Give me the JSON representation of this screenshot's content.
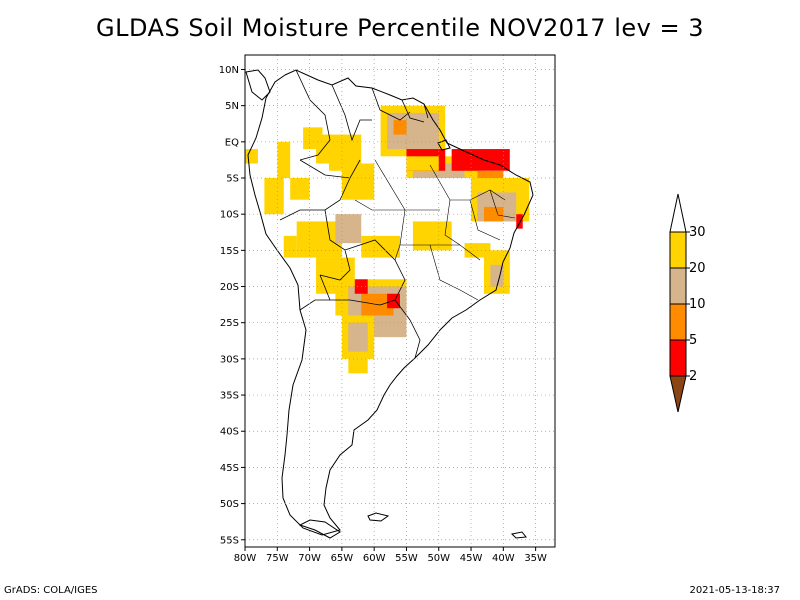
{
  "title": "GLDAS Soil Moisture Percentile NOV2017 lev = 3",
  "footer": {
    "left": "GrADS: COLA/IGES",
    "right": "2021-05-13-18:37"
  },
  "map": {
    "lon_range": [
      -80,
      -32
    ],
    "lat_range": [
      -56,
      12
    ],
    "x_ticks": [
      {
        "value": -80,
        "label": "80W"
      },
      {
        "value": -75,
        "label": "75W"
      },
      {
        "value": -70,
        "label": "70W"
      },
      {
        "value": -65,
        "label": "65W"
      },
      {
        "value": -60,
        "label": "60W"
      },
      {
        "value": -55,
        "label": "55W"
      },
      {
        "value": -50,
        "label": "50W"
      },
      {
        "value": -45,
        "label": "45W"
      },
      {
        "value": -40,
        "label": "40W"
      },
      {
        "value": -35,
        "label": "35W"
      }
    ],
    "y_ticks": [
      {
        "value": 10,
        "label": "10N"
      },
      {
        "value": 5,
        "label": "5N"
      },
      {
        "value": 0,
        "label": "EQ"
      },
      {
        "value": -5,
        "label": "5S"
      },
      {
        "value": -10,
        "label": "10S"
      },
      {
        "value": -15,
        "label": "15S"
      },
      {
        "value": -20,
        "label": "20S"
      },
      {
        "value": -25,
        "label": "25S"
      },
      {
        "value": -30,
        "label": "30S"
      },
      {
        "value": -35,
        "label": "35S"
      },
      {
        "value": -40,
        "label": "40S"
      },
      {
        "value": -45,
        "label": "45S"
      },
      {
        "value": -50,
        "label": "50S"
      },
      {
        "value": -55,
        "label": "55S"
      }
    ],
    "grid": "dotted"
  },
  "legend": {
    "placement": "right",
    "labels": [
      "30",
      "20",
      "10",
      "5",
      "2"
    ],
    "colors": {
      "above_30": "#ffffff",
      "20_30": "#ffd400",
      "10_20": "#d6b48c",
      "5_10": "#ff8c00",
      "2_5": "#ff0000",
      "below_2": "#8b4513"
    }
  },
  "shaded_regions": [
    {
      "class": "20_30",
      "lon": [
        -75,
        -73
      ],
      "lat": [
        0,
        -5
      ]
    },
    {
      "class": "20_30",
      "lon": [
        -73,
        -70
      ],
      "lat": [
        -5,
        -8
      ]
    },
    {
      "class": "20_30",
      "lon": [
        -71,
        -68
      ],
      "lat": [
        2,
        -1
      ]
    },
    {
      "class": "20_30",
      "lon": [
        -69,
        -62
      ],
      "lat": [
        1,
        -3
      ]
    },
    {
      "class": "20_30",
      "lon": [
        -65,
        -60
      ],
      "lat": [
        -3,
        -8
      ]
    },
    {
      "class": "20_30",
      "lon": [
        -59,
        -49
      ],
      "lat": [
        5,
        -2
      ]
    },
    {
      "class": "10_20",
      "lon": [
        -58,
        -50
      ],
      "lat": [
        4,
        -1
      ]
    },
    {
      "class": "5_10",
      "lon": [
        -57,
        -55
      ],
      "lat": [
        3,
        1
      ]
    },
    {
      "class": "20_30",
      "lon": [
        -55,
        -44
      ],
      "lat": [
        -2,
        -5
      ]
    },
    {
      "class": "10_20",
      "lon": [
        -54,
        -46
      ],
      "lat": [
        -3,
        -5
      ]
    },
    {
      "class": "2_5",
      "lon": [
        -55,
        -49
      ],
      "lat": [
        -1,
        -4
      ]
    },
    {
      "class": "2_5",
      "lon": [
        -48,
        -39
      ],
      "lat": [
        -1,
        -4
      ]
    },
    {
      "class": "5_10",
      "lon": [
        -44,
        -40
      ],
      "lat": [
        -4,
        -6
      ]
    },
    {
      "class": "20_30",
      "lon": [
        -45,
        -36
      ],
      "lat": [
        -5,
        -11
      ]
    },
    {
      "class": "10_20",
      "lon": [
        -44,
        -38
      ],
      "lat": [
        -7,
        -11
      ]
    },
    {
      "class": "5_10",
      "lon": [
        -43,
        -40
      ],
      "lat": [
        -9,
        -11
      ]
    },
    {
      "class": "2_5",
      "lon": [
        -38,
        -37
      ],
      "lat": [
        -10,
        -12
      ]
    },
    {
      "class": "20_30",
      "lon": [
        -72,
        -65
      ],
      "lat": [
        -11,
        -16
      ]
    },
    {
      "class": "10_20",
      "lon": [
        -66,
        -62
      ],
      "lat": [
        -10,
        -14
      ]
    },
    {
      "class": "20_30",
      "lon": [
        -62,
        -56
      ],
      "lat": [
        -13,
        -16
      ]
    },
    {
      "class": "20_30",
      "lon": [
        -54,
        -48
      ],
      "lat": [
        -11,
        -15
      ]
    },
    {
      "class": "20_30",
      "lon": [
        -46,
        -42
      ],
      "lat": [
        -14,
        -16
      ]
    },
    {
      "class": "20_30",
      "lon": [
        -43,
        -39
      ],
      "lat": [
        -15,
        -21
      ]
    },
    {
      "class": "10_20",
      "lon": [
        -42,
        -40
      ],
      "lat": [
        -17,
        -20
      ]
    },
    {
      "class": "20_30",
      "lon": [
        -69,
        -63
      ],
      "lat": [
        -16,
        -21
      ]
    },
    {
      "class": "20_30",
      "lon": [
        -66,
        -55
      ],
      "lat": [
        -19,
        -24
      ]
    },
    {
      "class": "10_20",
      "lon": [
        -64,
        -55
      ],
      "lat": [
        -20,
        -27
      ]
    },
    {
      "class": "5_10",
      "lon": [
        -62,
        -57
      ],
      "lat": [
        -21,
        -24
      ]
    },
    {
      "class": "2_5",
      "lon": [
        -63,
        -61
      ],
      "lat": [
        -19,
        -21
      ]
    },
    {
      "class": "2_5",
      "lon": [
        -58,
        -56
      ],
      "lat": [
        -21,
        -23
      ]
    },
    {
      "class": "20_30",
      "lon": [
        -65,
        -60
      ],
      "lat": [
        -24,
        -30
      ]
    },
    {
      "class": "10_20",
      "lon": [
        -64,
        -61
      ],
      "lat": [
        -25,
        -29
      ]
    },
    {
      "class": "20_30",
      "lon": [
        -64,
        -61
      ],
      "lat": [
        -30,
        -32
      ]
    },
    {
      "class": "20_30",
      "lon": [
        -80,
        -78
      ],
      "lat": [
        -1,
        -3
      ]
    },
    {
      "class": "20_30",
      "lon": [
        -77,
        -74
      ],
      "lat": [
        -5,
        -10
      ]
    },
    {
      "class": "20_30",
      "lon": [
        -74,
        -72
      ],
      "lat": [
        -13,
        -16
      ]
    },
    {
      "class": "20_30",
      "lon": [
        -55,
        -50
      ],
      "lat": [
        -2,
        -4
      ]
    },
    {
      "class": "20_30",
      "lon": [
        -67,
        -63
      ],
      "lat": [
        0,
        -4
      ]
    }
  ]
}
